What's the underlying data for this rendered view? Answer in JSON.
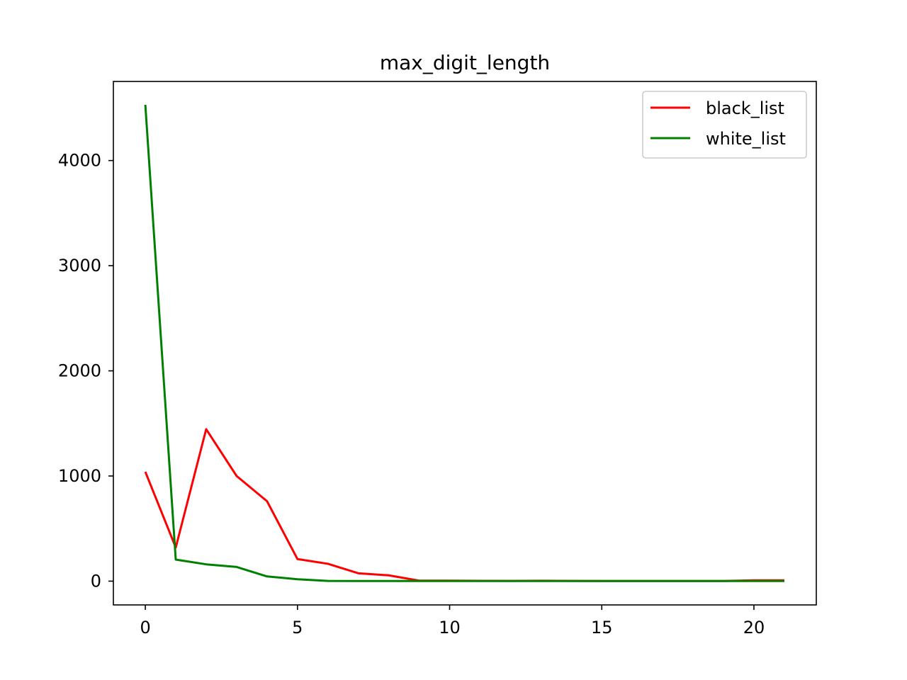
{
  "chart_data": {
    "type": "line",
    "title": "max_digit_length",
    "xlabel": "",
    "ylabel": "",
    "xlim": [
      -1.05,
      22.05
    ],
    "ylim": [
      -226,
      4752
    ],
    "xticks": [
      0,
      5,
      10,
      15,
      20
    ],
    "yticks": [
      0,
      1000,
      2000,
      3000,
      4000
    ],
    "grid": false,
    "legend_position": "top-right",
    "x": [
      0,
      1,
      2,
      3,
      4,
      5,
      6,
      7,
      8,
      9,
      10,
      11,
      12,
      13,
      14,
      15,
      16,
      17,
      18,
      19,
      20,
      21
    ],
    "series": [
      {
        "name": "black_list",
        "color": "#ff0000",
        "values": [
          1040,
          320,
          1445,
          1000,
          760,
          210,
          165,
          75,
          55,
          5,
          5,
          3,
          2,
          4,
          2,
          1,
          1,
          1,
          1,
          1,
          8,
          8
        ]
      },
      {
        "name": "white_list",
        "color": "#008000",
        "values": [
          4530,
          205,
          160,
          135,
          45,
          18,
          2,
          1,
          1,
          1,
          1,
          1,
          1,
          1,
          1,
          1,
          1,
          1,
          1,
          1,
          1,
          1
        ]
      }
    ]
  }
}
